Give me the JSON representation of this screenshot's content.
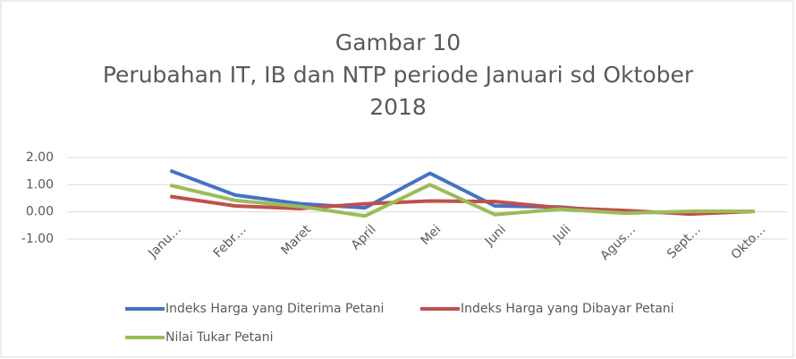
{
  "chart_data": {
    "type": "line",
    "title": "Gambar 10",
    "subtitle": "Perubahan IT, IB dan NTP periode Januari sd Oktober 2018",
    "categories": [
      "Janu…",
      "Febr…",
      "Maret",
      "April",
      "Mei",
      "Juni",
      "Juli",
      "Agus…",
      "Sept…",
      "Okto…"
    ],
    "series": [
      {
        "name": "Indeks Harga yang Diterima Petani",
        "color": "#4472c4",
        "values": [
          1.52,
          0.62,
          0.3,
          0.15,
          1.42,
          0.22,
          0.18,
          -0.02,
          -0.02,
          0.02
        ]
      },
      {
        "name": "Indeks Harga yang Dibayar Petani",
        "color": "#c0504d",
        "values": [
          0.57,
          0.22,
          0.12,
          0.3,
          0.4,
          0.38,
          0.15,
          0.05,
          -0.08,
          0.02
        ]
      },
      {
        "name": "Nilai Tukar Petani",
        "color": "#9bbb59",
        "values": [
          0.98,
          0.42,
          0.2,
          -0.15,
          1.0,
          -0.1,
          0.1,
          -0.05,
          0.02,
          0.02
        ]
      }
    ],
    "ylim": [
      -1,
      2
    ],
    "yticks": [
      {
        "value": -1,
        "label": "-1.00"
      },
      {
        "value": 0,
        "label": "0.00"
      },
      {
        "value": 1,
        "label": "1.00"
      },
      {
        "value": 2,
        "label": "2.00"
      }
    ],
    "grid": true,
    "legend": "bottom"
  }
}
